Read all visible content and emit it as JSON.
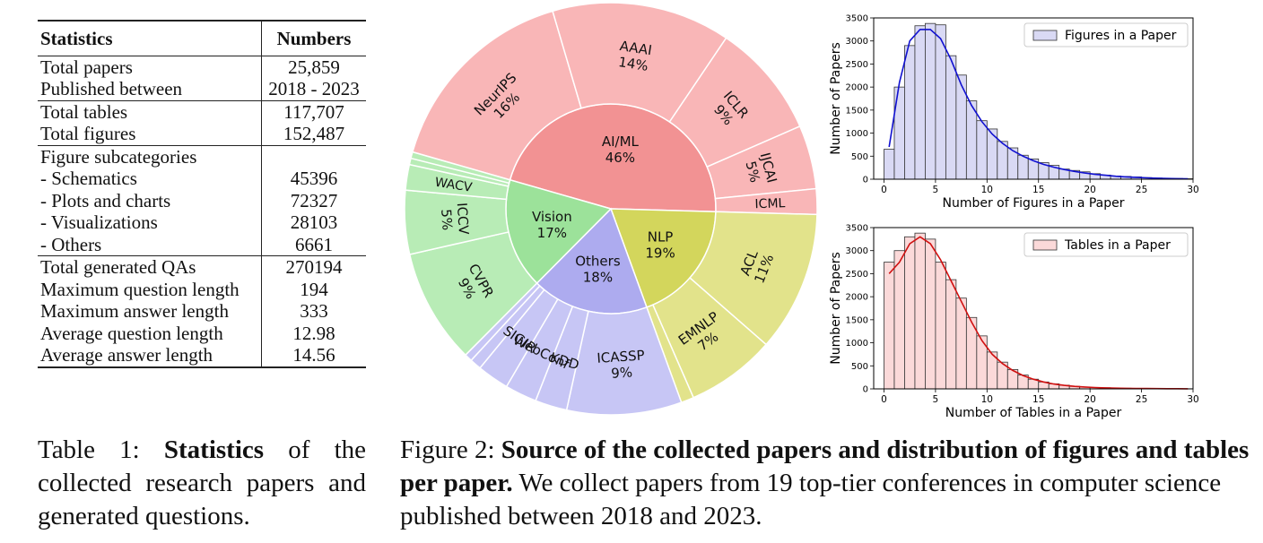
{
  "table": {
    "header": {
      "stat": "Statistics",
      "num": "Numbers"
    },
    "groups": [
      [
        {
          "label": "Total papers",
          "value": "25,859"
        },
        {
          "label": "Published between",
          "value": "2018 - 2023"
        }
      ],
      [
        {
          "label": "Total tables",
          "value": "117,707"
        },
        {
          "label": "Total figures",
          "value": "152,487"
        }
      ],
      [
        {
          "label": "Figure subcategories",
          "value": ""
        },
        {
          "label": "- Schematics",
          "value": "45396"
        },
        {
          "label": "- Plots and charts",
          "value": "72327"
        },
        {
          "label": "- Visualizations",
          "value": "28103"
        },
        {
          "label": "- Others",
          "value": "6661"
        }
      ],
      [
        {
          "label": "Total generated QAs",
          "value": "270194"
        },
        {
          "label": "Maximum question length",
          "value": "194"
        },
        {
          "label": "Maximum answer length",
          "value": "333"
        },
        {
          "label": "Average question length",
          "value": "12.98"
        },
        {
          "label": "Average answer length",
          "value": "14.56"
        }
      ]
    ]
  },
  "table_caption": {
    "prefix": "Table 1: ",
    "bold": "Statistics",
    "rest": " of the collected research papers and generated questions."
  },
  "figure_caption": {
    "prefix": "Figure 2: ",
    "bold": "Source of the collected papers and distribution of figures and tables per paper.",
    "rest": " We collect papers from 19 top-tier conferences in computer science published between 2018 and 2023."
  },
  "chart_data": [
    {
      "type": "sunburst",
      "inner": [
        {
          "name": "AI/ML",
          "pct": "46%",
          "value": 46,
          "color": "#f29293",
          "children": [
            {
              "name": "NeurIPS",
              "pct": "16%",
              "value": 16,
              "color": "#f9b6b7"
            },
            {
              "name": "AAAI",
              "pct": "14%",
              "value": 14,
              "color": "#f9b6b7"
            },
            {
              "name": "ICLR",
              "pct": "9%",
              "value": 9,
              "color": "#f9b6b7"
            },
            {
              "name": "IJCAI",
              "pct": "5%",
              "value": 5,
              "color": "#f9b6b7"
            },
            {
              "name": "ICML",
              "pct": "",
              "value": 2,
              "color": "#f9b6b7"
            }
          ]
        },
        {
          "name": "NLP",
          "pct": "19%",
          "value": 19,
          "color": "#d3d65c",
          "children": [
            {
              "name": "ACL",
              "pct": "11%",
              "value": 11,
              "color": "#e2e38b"
            },
            {
              "name": "EMNLP",
              "pct": "7%",
              "value": 7,
              "color": "#e2e38b"
            },
            {
              "name": "",
              "pct": "",
              "value": 1,
              "color": "#e2e38b"
            }
          ]
        },
        {
          "name": "Others",
          "pct": "18%",
          "value": 18,
          "color": "#adabef",
          "children": [
            {
              "name": "ICASSP",
              "pct": "9%",
              "value": 9,
              "color": "#c7c6f5"
            },
            {
              "name": "KDD",
              "pct": "",
              "value": 2.5,
              "color": "#c7c6f5"
            },
            {
              "name": "WebConf",
              "pct": "",
              "value": 2.5,
              "color": "#c7c6f5"
            },
            {
              "name": "SIGIR",
              "pct": "",
              "value": 2.5,
              "color": "#c7c6f5"
            },
            {
              "name": "",
              "pct": "",
              "value": 0.9,
              "color": "#c7c6f5"
            },
            {
              "name": "",
              "pct": "",
              "value": 0.6,
              "color": "#c7c6f5"
            }
          ]
        },
        {
          "name": "Vision",
          "pct": "17%",
          "value": 17,
          "color": "#9ce29a",
          "children": [
            {
              "name": "CVPR",
              "pct": "9%",
              "value": 9,
              "color": "#b8ecb6"
            },
            {
              "name": "ICCV",
              "pct": "5%",
              "value": 5,
              "color": "#b8ecb6"
            },
            {
              "name": "WACV",
              "pct": "",
              "value": 2,
              "color": "#b8ecb6"
            },
            {
              "name": "",
              "pct": "",
              "value": 0.5,
              "color": "#b8ecb6"
            },
            {
              "name": "",
              "pct": "",
              "value": 0.5,
              "color": "#b8ecb6"
            }
          ]
        }
      ]
    },
    {
      "type": "histogram",
      "legend": "Figures in a Paper",
      "xlabel": "Number of Figures in a Paper",
      "ylabel": "Number of Papers",
      "xlim": [
        -1,
        30
      ],
      "ylim": [
        0,
        3500
      ],
      "xticks": [
        0,
        5,
        10,
        15,
        20,
        25,
        30
      ],
      "yticks": [
        0,
        500,
        1000,
        1500,
        2000,
        2500,
        3000,
        3500
      ],
      "bar_color": "#d9d9f4",
      "line_color": "#1010d0",
      "bin_width": 1,
      "x": [
        0,
        1,
        2,
        3,
        4,
        5,
        6,
        7,
        8,
        9,
        10,
        11,
        12,
        13,
        14,
        15,
        16,
        17,
        18,
        19,
        20,
        21,
        22,
        23,
        24,
        25,
        26,
        27,
        28,
        29
      ],
      "values": [
        650,
        2000,
        2900,
        3330,
        3380,
        3350,
        2680,
        2260,
        1700,
        1270,
        1090,
        820,
        680,
        520,
        440,
        360,
        300,
        220,
        190,
        160,
        120,
        90,
        70,
        60,
        50,
        35,
        25,
        20,
        15,
        10
      ],
      "kde": [
        700,
        2100,
        3000,
        3250,
        3250,
        3050,
        2600,
        2050,
        1600,
        1250,
        980,
        780,
        620,
        500,
        400,
        320,
        260,
        210,
        170,
        135,
        105,
        85,
        65,
        50,
        40,
        30,
        22,
        16,
        12,
        8
      ]
    },
    {
      "type": "histogram",
      "legend": "Tables in a Paper",
      "xlabel": "Number of Tables in a Paper",
      "ylabel": "Number of Papers",
      "xlim": [
        -1,
        30
      ],
      "ylim": [
        0,
        3500
      ],
      "xticks": [
        0,
        5,
        10,
        15,
        20,
        25,
        30
      ],
      "yticks": [
        0,
        500,
        1000,
        1500,
        2000,
        2500,
        3000,
        3500
      ],
      "bar_color": "#fbd9d9",
      "line_color": "#d01010",
      "bin_width": 1,
      "x": [
        0,
        1,
        2,
        3,
        4,
        5,
        6,
        7,
        8,
        9,
        10,
        11,
        12,
        13,
        14,
        15,
        16,
        17,
        18,
        19,
        20,
        21,
        22,
        23,
        24,
        25,
        26,
        27,
        28,
        29
      ],
      "values": [
        2750,
        3000,
        3300,
        3380,
        3250,
        2750,
        2370,
        1970,
        1550,
        1150,
        800,
        580,
        420,
        300,
        210,
        150,
        110,
        80,
        55,
        40,
        30,
        25,
        18,
        14,
        10,
        8,
        6,
        5,
        4,
        3
      ],
      "kde": [
        2500,
        2750,
        3150,
        3300,
        3150,
        2800,
        2350,
        1900,
        1450,
        1050,
        750,
        550,
        400,
        290,
        210,
        150,
        105,
        75,
        55,
        40,
        30,
        22,
        16,
        12,
        9,
        7,
        5,
        4,
        3,
        2
      ]
    }
  ]
}
